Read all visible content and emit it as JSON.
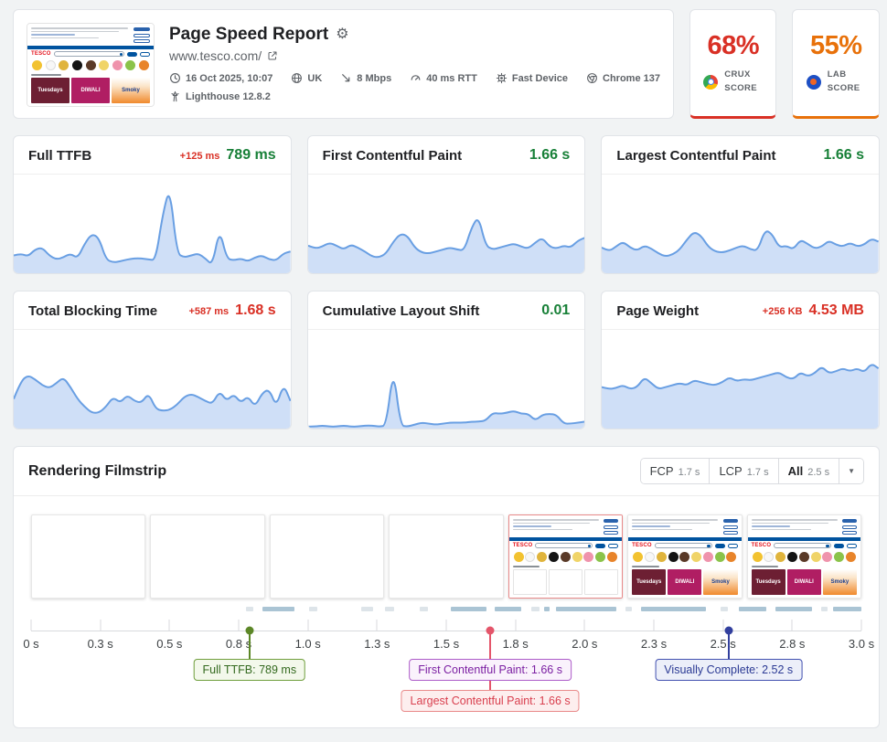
{
  "header": {
    "title": "Page Speed Report",
    "url": "www.tesco.com/",
    "meta_rows": [
      [
        {
          "icon": "clock-icon",
          "label": "16 Oct 2025, 10:07"
        },
        {
          "icon": "globe-icon",
          "label": "UK"
        },
        {
          "icon": "bandwidth-icon",
          "label": "8 Mbps"
        },
        {
          "icon": "gauge-icon",
          "label": "40 ms RTT"
        },
        {
          "icon": "device-icon",
          "label": "Fast Device"
        },
        {
          "icon": "chrome-icon",
          "label": "Chrome 137"
        }
      ],
      [
        {
          "icon": "lighthouse-icon",
          "label": "Lighthouse 12.8.2"
        }
      ]
    ],
    "scores": [
      {
        "value": "68%",
        "label": "CRUX SCORE",
        "color": "#d93025",
        "icon": "crux-logo-icon"
      },
      {
        "value": "55%",
        "label": "LAB SCORE",
        "color": "#e8710a",
        "icon": "lab-logo-icon"
      }
    ]
  },
  "metrics": [
    {
      "title": "Full TTFB",
      "delta": "+125 ms",
      "value": "789 ms",
      "value_color": "#188038",
      "spark": 0
    },
    {
      "title": "First Contentful Paint",
      "delta": "",
      "value": "1.66 s",
      "value_color": "#188038",
      "spark": 1
    },
    {
      "title": "Largest Contentful Paint",
      "delta": "",
      "value": "1.66 s",
      "value_color": "#188038",
      "spark": 2
    },
    {
      "title": "Total Blocking Time",
      "delta": "+587 ms",
      "value": "1.68 s",
      "value_color": "#d93025",
      "spark": 3
    },
    {
      "title": "Cumulative Layout Shift",
      "delta": "",
      "value": "0.01",
      "value_color": "#188038",
      "spark": 4
    },
    {
      "title": "Page Weight",
      "delta": "+256 KB",
      "value": "4.53 MB",
      "value_color": "#d93025",
      "spark": 5
    }
  ],
  "chart_data": {
    "type": "line",
    "description": "Six metric-card sparkline trend histories, values normalized 0-100 (sparklines have no visible axes in the UI)",
    "legend_position": "none",
    "grid": false,
    "series": [
      {
        "name": "Full TTFB",
        "values": [
          18,
          20,
          17,
          24,
          26,
          18,
          14,
          16,
          20,
          15,
          30,
          40,
          36,
          14,
          11,
          12,
          14,
          15,
          15,
          14,
          13,
          60,
          88,
          20,
          16,
          18,
          20,
          15,
          8,
          45,
          15,
          13,
          15,
          12,
          16,
          18,
          14,
          13,
          20,
          22
        ]
      },
      {
        "name": "First Contentful Paint",
        "values": [
          28,
          25,
          27,
          31,
          28,
          24,
          29,
          26,
          22,
          17,
          16,
          20,
          32,
          40,
          38,
          26,
          21,
          20,
          22,
          24,
          26,
          24,
          23,
          46,
          58,
          28,
          24,
          26,
          28,
          30,
          27,
          25,
          31,
          36,
          27,
          25,
          28,
          26,
          33,
          36
        ]
      },
      {
        "name": "Largest Contentful Paint",
        "values": [
          26,
          22,
          27,
          32,
          26,
          23,
          28,
          25,
          20,
          17,
          19,
          24,
          34,
          42,
          38,
          27,
          22,
          21,
          23,
          26,
          28,
          24,
          23,
          44,
          40,
          26,
          28,
          24,
          34,
          30,
          25,
          27,
          33,
          29,
          27,
          31,
          27,
          29,
          35,
          32
        ]
      },
      {
        "name": "Total Blocking Time",
        "values": [
          30,
          48,
          54,
          50,
          44,
          41,
          46,
          52,
          42,
          30,
          22,
          16,
          16,
          22,
          32,
          26,
          34,
          28,
          26,
          36,
          20,
          18,
          19,
          24,
          32,
          35,
          32,
          28,
          25,
          38,
          28,
          35,
          26,
          33,
          22,
          36,
          40,
          22,
          45,
          28
        ]
      },
      {
        "name": "Cumulative Layout Shift",
        "values": [
          2,
          2,
          3,
          2,
          2,
          3,
          2,
          2,
          3,
          3,
          2,
          3,
          62,
          3,
          2,
          4,
          6,
          5,
          4,
          5,
          6,
          6,
          6,
          7,
          7,
          8,
          16,
          15,
          16,
          18,
          15,
          15,
          8,
          14,
          15,
          14,
          5,
          5,
          6,
          7
        ]
      },
      {
        "name": "Page Weight",
        "values": [
          42,
          40,
          41,
          44,
          40,
          42,
          52,
          46,
          40,
          42,
          44,
          46,
          44,
          49,
          47,
          45,
          44,
          47,
          52,
          48,
          50,
          49,
          51,
          53,
          55,
          57,
          52,
          50,
          57,
          53,
          56,
          63,
          56,
          58,
          61,
          58,
          61,
          57,
          66,
          61
        ]
      }
    ]
  },
  "filmstrip": {
    "title": "Rendering Filmstrip",
    "tabs": [
      {
        "label": "FCP",
        "value": "1.7 s",
        "selected": false
      },
      {
        "label": "LCP",
        "value": "1.7 s",
        "selected": false
      },
      {
        "label": "All",
        "value": "2.5 s",
        "selected": true
      }
    ],
    "dropdown_icon": "chevron-down-icon",
    "frames": [
      {
        "type": "blank",
        "highlighted": false
      },
      {
        "type": "blank",
        "highlighted": false
      },
      {
        "type": "blank",
        "highlighted": false
      },
      {
        "type": "blank",
        "highlighted": false
      },
      {
        "type": "partial",
        "highlighted": true
      },
      {
        "type": "full",
        "highlighted": false
      },
      {
        "type": "full",
        "highlighted": false
      }
    ],
    "waterfall_segments": [
      [
        25.9,
        0.9,
        0
      ],
      [
        27.9,
        3.8,
        1
      ],
      [
        33.5,
        1.0,
        0
      ],
      [
        39.8,
        1.4,
        0
      ],
      [
        42.6,
        1.1,
        0
      ],
      [
        46.8,
        1.0,
        0
      ],
      [
        50.6,
        4.3,
        1
      ],
      [
        55.8,
        3.2,
        1
      ],
      [
        60.2,
        1.0,
        0
      ],
      [
        61.8,
        0.7,
        1
      ],
      [
        63.2,
        7.3,
        1
      ],
      [
        71.6,
        0.8,
        0
      ],
      [
        73.5,
        7.8,
        1
      ],
      [
        83.0,
        0.9,
        0
      ],
      [
        85.2,
        3.3,
        1
      ],
      [
        89.6,
        4.4,
        1
      ],
      [
        95.2,
        0.7,
        0
      ],
      [
        96.6,
        3.4,
        1
      ]
    ],
    "timeline_ticks": [
      "0 s",
      "0.3 s",
      "0.5 s",
      "0.8 s",
      "1.0 s",
      "1.3 s",
      "1.5 s",
      "1.8 s",
      "2.0 s",
      "2.3 s",
      "2.5 s",
      "2.8 s",
      "3.0 s"
    ],
    "timeline_range_s": [
      0,
      3.0
    ],
    "markers": [
      {
        "id": "full-ttfb",
        "label": "Full TTFB: 789 ms",
        "time_s": 0.789,
        "pct": 26.3,
        "row": 1,
        "dot": true,
        "colors": {
          "accent": "#5c8727",
          "text": "#33691e",
          "border": "#6f9e3c",
          "bg": "#f3f8eb"
        }
      },
      {
        "id": "fcp",
        "label": "First Contentful Paint: 1.66 s",
        "time_s": 1.66,
        "pct": 55.3,
        "row": 1,
        "dot": false,
        "colors": {
          "accent": "#a94ecb",
          "text": "#7b1fa2",
          "border": "#ad5cc8",
          "bg": "#faf2fc"
        }
      },
      {
        "id": "lcp",
        "label": "Largest Contentful Paint: 1.66 s",
        "time_s": 1.66,
        "pct": 55.3,
        "row": 2,
        "dot": true,
        "colors": {
          "accent": "#e4556a",
          "text": "#d9404f",
          "border": "#e98a8a",
          "bg": "#fdeeee"
        }
      },
      {
        "id": "visually-complete",
        "label": "Visually Complete: 2.52 s",
        "time_s": 2.52,
        "pct": 84.0,
        "row": 1,
        "dot": true,
        "colors": {
          "accent": "#323f9e",
          "text": "#2b3a94",
          "border": "#4150b0",
          "bg": "#eceff9"
        }
      }
    ]
  },
  "thumbnail": {
    "logo": "TESCO",
    "banners": [
      "Tuesdays",
      "DIWALI",
      "Smoky"
    ],
    "circles": [
      "#f2c230",
      "#f7f7f7",
      "#e0b43c",
      "#141414",
      "#5a3a28",
      "#f0d468",
      "#ef93ac",
      "#8bc34a",
      "#e8842a"
    ]
  },
  "colors": {
    "good": "#188038",
    "bad": "#d93025",
    "lab_orange": "#e8710a",
    "spark_line": "#699fe3",
    "spark_fill": "#cfdff7",
    "waterfall_dark": "#aac4d4",
    "waterfall_light": "#dde4e9"
  }
}
